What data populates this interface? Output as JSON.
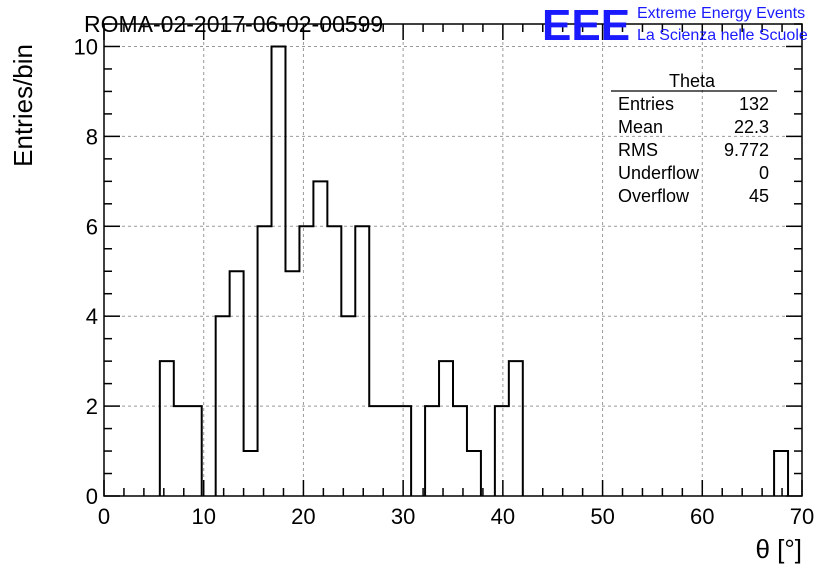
{
  "header": {
    "run_title": "ROMA-02-2017-06-02-00599",
    "logo_mark": "EEE",
    "logo_line1": "Extreme Energy Events",
    "logo_line2": "La Scienza nelle Scuole"
  },
  "colors": {
    "logo": "#1a1aff",
    "grid": "#999999",
    "line": "#000000"
  },
  "stats": {
    "title": "Theta",
    "rows": [
      {
        "label": "Entries",
        "value": "132"
      },
      {
        "label": "Mean",
        "value": "22.3"
      },
      {
        "label": "RMS",
        "value": "9.772"
      },
      {
        "label": "Underflow",
        "value": "0"
      },
      {
        "label": "Overflow",
        "value": "45"
      }
    ]
  },
  "chart_data": {
    "type": "histogram",
    "xlabel": "θ [°]",
    "ylabel": "Entries/bin",
    "xlim": [
      0,
      70
    ],
    "ylim": [
      0,
      10.5
    ],
    "x_ticks": [
      0,
      10,
      20,
      30,
      40,
      50,
      60,
      70
    ],
    "y_ticks": [
      0,
      2,
      4,
      6,
      8,
      10
    ],
    "grid": true,
    "bin_width": 1.4,
    "bin_edges_start": 0,
    "values": [
      0,
      0,
      0,
      0,
      3,
      2,
      2,
      0,
      4,
      5,
      1,
      6,
      10,
      5,
      6,
      7,
      6,
      4,
      6,
      2,
      2,
      2,
      0,
      2,
      3,
      2,
      1,
      0,
      2,
      3,
      0,
      0,
      0,
      0,
      0,
      0,
      0,
      0,
      0,
      0,
      0,
      0,
      0,
      0,
      0,
      0,
      0,
      0,
      1,
      0
    ]
  }
}
